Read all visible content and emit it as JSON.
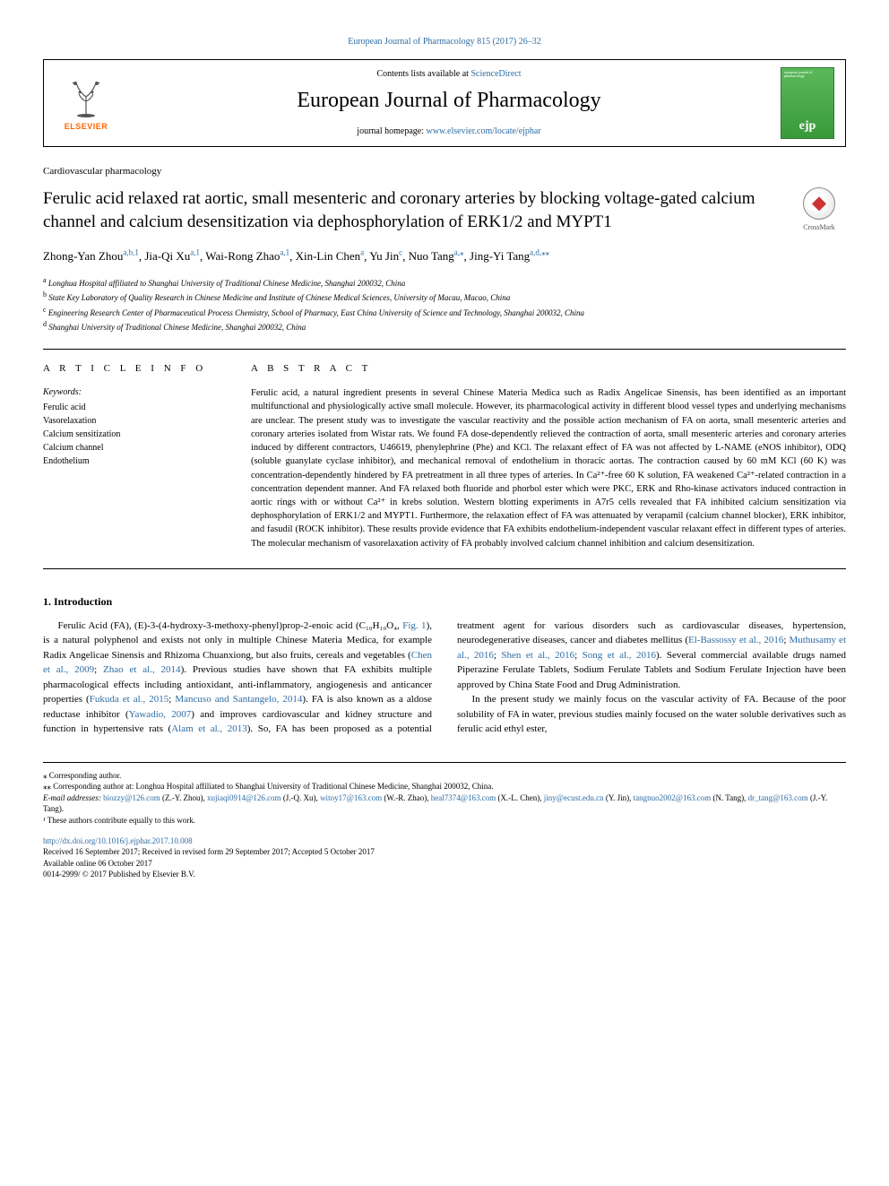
{
  "topLink": {
    "journal": "European Journal of Pharmacology 815 (2017) 26–32"
  },
  "header": {
    "contentsPrefix": "Contents lists available at ",
    "contentsLink": "ScienceDirect",
    "journalName": "European Journal of Pharmacology",
    "homepagePrefix": "journal homepage: ",
    "homepageLink": "www.elsevier.com/locate/ejphar",
    "elsevierLabel": "ELSEVIER",
    "coverTopText": "european journal of pharmacology",
    "coverLogo": "ejp"
  },
  "sectionLabel": "Cardiovascular pharmacology",
  "title": "Ferulic acid relaxed rat aortic, small mesenteric and coronary arteries by blocking voltage-gated calcium channel and calcium desensitization via dephosphorylation of ERK1/2 and MYPT1",
  "crossmark": "CrossMark",
  "authors": [
    {
      "name": "Zhong-Yan Zhou",
      "sup": "a,b,1"
    },
    {
      "name": "Jia-Qi Xu",
      "sup": "a,1"
    },
    {
      "name": "Wai-Rong Zhao",
      "sup": "a,1"
    },
    {
      "name": "Xin-Lin Chen",
      "sup": "a"
    },
    {
      "name": "Yu Jin",
      "sup": "c"
    },
    {
      "name": "Nuo Tang",
      "sup": "a,⁎"
    },
    {
      "name": "Jing-Yi Tang",
      "sup": "a,d,⁎⁎"
    }
  ],
  "affiliations": [
    {
      "sup": "a",
      "text": "Longhua Hospital affiliated to Shanghai University of Traditional Chinese Medicine, Shanghai 200032, China"
    },
    {
      "sup": "b",
      "text": "State Key Laboratory of Quality Research in Chinese Medicine and Institute of Chinese Medical Sciences, University of Macau, Macao, China"
    },
    {
      "sup": "c",
      "text": "Engineering Research Center of Pharmaceutical Process Chemistry, School of Pharmacy, East China University of Science and Technology, Shanghai 200032, China"
    },
    {
      "sup": "d",
      "text": "Shanghai University of Traditional Chinese Medicine, Shanghai 200032, China"
    }
  ],
  "articleInfo": {
    "heading": "A R T I C L E  I N F O",
    "keywordsLabel": "Keywords:",
    "keywords": [
      "Ferulic acid",
      "Vasorelaxation",
      "Calcium sensitization",
      "Calcium channel",
      "Endothelium"
    ]
  },
  "abstract": {
    "heading": "A B S T R A C T",
    "text": "Ferulic acid, a natural ingredient presents in several Chinese Materia Medica such as Radix Angelicae Sinensis, has been identified as an important multifunctional and physiologically active small molecule. However, its pharmacological activity in different blood vessel types and underlying mechanisms are unclear. The present study was to investigate the vascular reactivity and the possible action mechanism of FA on aorta, small mesenteric arteries and coronary arteries isolated from Wistar rats. We found FA dose-dependently relieved the contraction of aorta, small mesenteric arteries and coronary arteries induced by different contractors, U46619, phenylephrine (Phe) and KCl. The relaxant effect of FA was not affected by L-NAME (eNOS inhibitor), ODQ (soluble guanylate cyclase inhibitor), and mechanical removal of endothelium in thoracic aortas. The contraction caused by 60 mM KCl (60 K) was concentration-dependently hindered by FA pretreatment in all three types of arteries. In Ca²⁺-free 60 K solution, FA weakened Ca²⁺-related contraction in a concentration dependent manner. And FA relaxed both fluoride and phorbol ester which were PKC, ERK and Rho-kinase activators induced contraction in aortic rings with or without Ca²⁺ in krebs solution. Western blotting experiments in A7r5 cells revealed that FA inhibited calcium sensitization via dephosphorylation of ERK1/2 and MYPT1. Furthermore, the relaxation effect of FA was attenuated by verapamil (calcium channel blocker), ERK inhibitor, and fasudil (ROCK inhibitor). These results provide evidence that FA exhibits endothelium-independent vascular relaxant effect in different types of arteries. The molecular mechanism of vasorelaxation activity of FA probably involved calcium channel inhibition and calcium desensitization."
  },
  "introduction": {
    "heading": "1. Introduction",
    "para1_a": "Ferulic Acid (FA), (E)-3-(4-hydroxy-3-methoxy-phenyl)prop-2-enoic acid (C₁₀H₁₀O₄, ",
    "fig1": "Fig. 1",
    "para1_b": "), is a natural polyphenol and exists not only in multiple Chinese Materia Medica, for example Radix Angelicae Sinensis and Rhizoma Chuanxiong, but also fruits, cereals and vegetables (",
    "ref1": "Chen et al., 2009",
    "sep1": "; ",
    "ref2": "Zhao et al., 2014",
    "para1_c": "). Previous studies have shown that FA exhibits multiple pharmacological effects including antioxidant, anti-inflammatory, angiogenesis and anticancer properties (",
    "ref3": "Fukuda et al., 2015",
    "sep2": "; ",
    "ref4": "Mancuso and Santangelo, 2014",
    "para1_d": "). FA is also known as a aldose reductase inhibitor (",
    "ref5": "Yawadio, 2007",
    "para1_e": ") and improves cardiovascular and ",
    "para2_a": "kidney structure and function in hypertensive rats (",
    "ref6": "Alam et al., 2013",
    "para2_b": "). So, FA has been proposed as a potential treatment agent for various disorders such as cardiovascular diseases, hypertension, neurodegenerative diseases, cancer and diabetes mellitus (",
    "ref7": "El-Bassossy et al., 2016",
    "sep3": "; ",
    "ref8": "Muthusamy et al., 2016",
    "sep4": "; ",
    "ref9": "Shen et al., 2016",
    "sep5": "; ",
    "ref10": "Song et al., 2016",
    "para2_c": "). Several commercial available drugs named Piperazine Ferulate Tablets, Sodium Ferulate Tablets and Sodium Ferulate Injection have been approved by China State Food and Drug Administration.",
    "para3": "In the present study we mainly focus on the vascular activity of FA. Because of the poor solubility of FA in water, previous studies mainly focused on the water soluble derivatives such as ferulic acid ethyl ester,"
  },
  "footnotes": {
    "corr1": "⁎ Corresponding author.",
    "corr2": "⁎⁎ Corresponding author at: Longhua Hospital affiliated to Shanghai University of Traditional Chinese Medicine, Shanghai 200032, China.",
    "emailLabel": "E-mail addresses: ",
    "emails": [
      {
        "addr": "biozzy@126.com",
        "who": " (Z.-Y. Zhou), "
      },
      {
        "addr": "xujiaqi0914@126.com",
        "who": " (J.-Q. Xu), "
      },
      {
        "addr": "witoy17@163.com",
        "who": " (W.-R. Zhao), "
      },
      {
        "addr": "heal7374@163.com",
        "who": " (X.-L. Chen), "
      },
      {
        "addr": "jiny@ecust.edu.cn",
        "who": " (Y. Jin), "
      },
      {
        "addr": "tangnuo2002@163.com",
        "who": " (N. Tang), "
      },
      {
        "addr": "dr_tang@163.com",
        "who": " (J.-Y. Tang)."
      }
    ],
    "equal": "¹ These authors contribute equally to this work.",
    "doi": "http://dx.doi.org/10.1016/j.ejphar.2017.10.008",
    "received": "Received 16 September 2017; Received in revised form 29 September 2017; Accepted 5 October 2017",
    "available": "Available online 06 October 2017",
    "copyright": "0014-2999/ © 2017 Published by Elsevier B.V."
  },
  "colors": {
    "link": "#2e6da4",
    "elsevierOrange": "#ff6600",
    "coverGreen1": "#5bb85b",
    "coverGreen2": "#3a9a3a"
  }
}
